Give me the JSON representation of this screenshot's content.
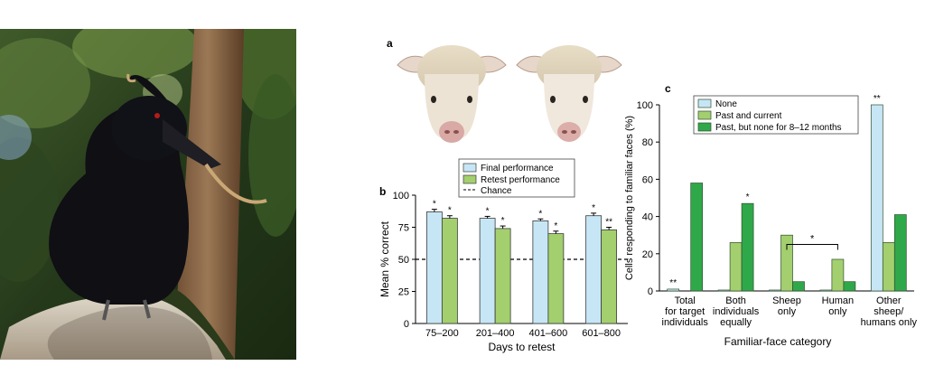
{
  "panel_a": {
    "letter": "a"
  },
  "chart_data": [
    {
      "type": "bar",
      "panel_letter": "b",
      "categories": [
        "75–200",
        "201–400",
        "401–600",
        "601–800"
      ],
      "series": [
        {
          "name": "Final performance",
          "values": [
            87,
            82,
            80,
            84
          ],
          "errors": [
            2,
            1.5,
            1.5,
            2
          ],
          "color": "#c7e6f5"
        },
        {
          "name": "Retest performance",
          "values": [
            82,
            74,
            70,
            73
          ],
          "errors": [
            2,
            2,
            2,
            2
          ],
          "color": "#a3cf6e"
        }
      ],
      "reference_line": {
        "name": "Chance",
        "value": 50
      },
      "significance": [
        [
          "*",
          "*"
        ],
        [
          "*",
          "*"
        ],
        [
          "*",
          "*"
        ],
        [
          "*",
          "**"
        ]
      ],
      "xlabel": "Days to retest",
      "ylabel": "Mean % correct",
      "ylim": [
        0,
        100
      ],
      "yticks": [
        0,
        25,
        50,
        75,
        100
      ]
    },
    {
      "type": "bar",
      "panel_letter": "c",
      "categories": [
        [
          "Total",
          "for target",
          "individuals"
        ],
        [
          "Both",
          "individuals",
          "equally"
        ],
        [
          "Sheep",
          "only"
        ],
        [
          "Human",
          "only"
        ],
        [
          "Other",
          "sheep/",
          "humans only"
        ]
      ],
      "series": [
        {
          "name": "None",
          "values": [
            1,
            0.5,
            0.5,
            0.5,
            100
          ],
          "color": "#c7e6f5"
        },
        {
          "name": "Past and current",
          "values": [
            0,
            26,
            30,
            17,
            26
          ],
          "color": "#a3cf6e"
        },
        {
          "name": "Past, but none for 8–12 months",
          "values": [
            58,
            47,
            5,
            5,
            41
          ],
          "color": "#2fa84a"
        }
      ],
      "annotations": [
        {
          "text": "**",
          "category": 0,
          "series": 0
        },
        {
          "text": "*",
          "category": 1,
          "series": 2
        },
        {
          "text": "**",
          "category": 4,
          "series": 0
        },
        {
          "text": "*",
          "bracket_categories": [
            2,
            3
          ]
        }
      ],
      "xlabel": "Familiar-face category",
      "ylabel": "Cells responding to familiar faces (%)",
      "ylim": [
        0,
        100
      ],
      "yticks": [
        0,
        20,
        40,
        60,
        80,
        100
      ]
    }
  ]
}
